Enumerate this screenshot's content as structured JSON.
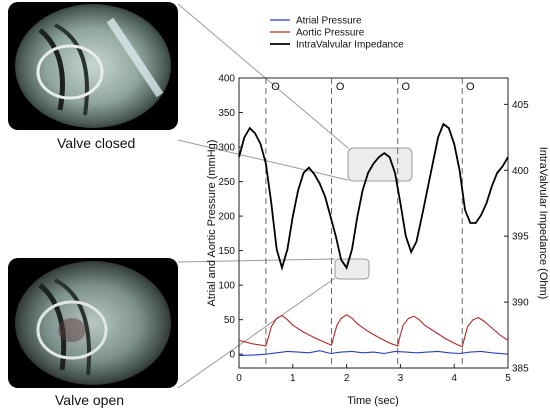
{
  "photos": [
    {
      "caption": "Valve closed"
    },
    {
      "caption": "Valve open"
    }
  ],
  "chart_data": {
    "type": "line",
    "xlabel": "Time (sec)",
    "ylabel_left": "Atrial and Aortic Pressure (mmHg)",
    "ylabel_right": "IntraValvular Impedance (Ohm)",
    "xlim": [
      0,
      5
    ],
    "ylim_left": [
      -20,
      400
    ],
    "ylim_right": [
      385,
      407
    ],
    "x_ticks": [
      "0",
      "1",
      "2",
      "3",
      "4",
      "5"
    ],
    "x_tick_values": [
      0,
      1,
      2,
      3,
      4,
      5
    ],
    "y_left_ticks": [
      "0",
      "50",
      "100",
      "150",
      "200",
      "250",
      "300",
      "350",
      "400"
    ],
    "y_left_tick_values": [
      0,
      50,
      100,
      150,
      200,
      250,
      300,
      350,
      400
    ],
    "y_right_ticks": [
      "385",
      "390",
      "395",
      "400",
      "405"
    ],
    "y_right_tick_values": [
      385,
      390,
      395,
      400,
      405
    ],
    "grid": false,
    "legend_position": "top",
    "dashed_lines_x": [
      0.5,
      1.72,
      2.95,
      4.15
    ],
    "annotations": [
      {
        "text": "O",
        "x": 0.68
      },
      {
        "text": "O",
        "x": 1.88
      },
      {
        "text": "O",
        "x": 3.1
      },
      {
        "text": "O",
        "x": 4.3
      }
    ],
    "series": [
      {
        "name": "Atrial Pressure",
        "color": "#2b3fbf",
        "axis": "left",
        "x": [
          0,
          0.3,
          0.5,
          0.7,
          0.9,
          1.1,
          1.3,
          1.5,
          1.7,
          1.9,
          2.1,
          2.3,
          2.5,
          2.7,
          2.9,
          3.1,
          3.3,
          3.5,
          3.7,
          3.9,
          4.1,
          4.3,
          4.5,
          4.7,
          5.0
        ],
        "y": [
          -2,
          -1,
          0,
          2,
          4,
          3,
          2,
          5,
          1,
          3,
          4,
          2,
          3,
          1,
          4,
          3,
          2,
          3,
          4,
          2,
          1,
          3,
          4,
          2,
          0
        ]
      },
      {
        "name": "Aortic Pressure",
        "color": "#b02a2a",
        "axis": "left",
        "x": [
          0,
          0.25,
          0.5,
          0.55,
          0.6,
          0.7,
          0.8,
          0.9,
          1.0,
          1.2,
          1.4,
          1.6,
          1.72,
          1.77,
          1.82,
          1.9,
          2.0,
          2.1,
          2.2,
          2.4,
          2.6,
          2.8,
          2.95,
          3.0,
          3.05,
          3.15,
          3.25,
          3.35,
          3.45,
          3.65,
          3.85,
          4.05,
          4.15,
          4.2,
          4.25,
          4.35,
          4.45,
          4.55,
          4.7,
          4.85,
          5.0
        ],
        "y": [
          20,
          15,
          12,
          25,
          40,
          52,
          56,
          50,
          42,
          32,
          24,
          17,
          13,
          28,
          42,
          52,
          57,
          52,
          44,
          33,
          24,
          16,
          12,
          28,
          42,
          52,
          55,
          50,
          42,
          32,
          22,
          14,
          11,
          26,
          40,
          50,
          53,
          48,
          38,
          28,
          20
        ]
      },
      {
        "name": "IntraValvular Impedance",
        "color": "#000000",
        "axis": "right",
        "x": [
          0,
          0.1,
          0.2,
          0.3,
          0.4,
          0.5,
          0.6,
          0.7,
          0.8,
          0.9,
          1.0,
          1.1,
          1.2,
          1.3,
          1.4,
          1.5,
          1.6,
          1.7,
          1.8,
          1.9,
          2.0,
          2.1,
          2.2,
          2.3,
          2.4,
          2.5,
          2.6,
          2.7,
          2.8,
          2.9,
          3.0,
          3.1,
          3.2,
          3.3,
          3.4,
          3.5,
          3.6,
          3.7,
          3.8,
          3.9,
          4.0,
          4.1,
          4.2,
          4.3,
          4.4,
          4.5,
          4.6,
          4.7,
          4.8,
          4.9,
          5.0
        ],
        "y": [
          401.0,
          402.5,
          403.2,
          402.8,
          402.0,
          400.5,
          397.5,
          394.0,
          392.6,
          394.0,
          396.5,
          398.5,
          399.8,
          400.2,
          399.7,
          399.0,
          398.0,
          396.5,
          395.0,
          393.2,
          392.6,
          394.0,
          396.5,
          398.5,
          399.8,
          400.5,
          401.0,
          401.3,
          401.0,
          399.8,
          397.5,
          395.0,
          393.8,
          394.6,
          396.5,
          398.5,
          400.5,
          402.5,
          403.5,
          403.2,
          402.0,
          400.0,
          397.0,
          396.0,
          396.0,
          396.6,
          397.5,
          398.8,
          399.8,
          400.3,
          401.0
        ]
      }
    ]
  }
}
